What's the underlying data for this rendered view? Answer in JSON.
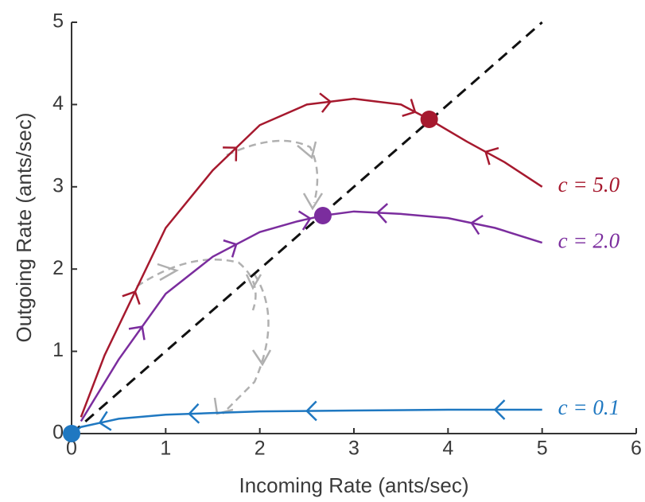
{
  "chart_data": {
    "type": "line",
    "xlabel": "Incoming Rate (ants/sec)",
    "ylabel": "Outgoing Rate (ants/sec)",
    "xlim": [
      0,
      6
    ],
    "ylim": [
      0,
      5
    ],
    "xticks": [
      0,
      1,
      2,
      3,
      4,
      5,
      6
    ],
    "yticks": [
      0,
      1,
      2,
      3,
      4,
      5
    ],
    "diagonal": {
      "x": [
        0,
        5
      ],
      "values": [
        0,
        5
      ],
      "color": "#111111"
    },
    "series": [
      {
        "name": "c = 5.0",
        "color": "#a6192e",
        "x": [
          0.1,
          0.35,
          1,
          1.5,
          2,
          2.5,
          3,
          3.5,
          3.8,
          4.2,
          4.6,
          5
        ],
        "values": [
          0.2,
          0.95,
          2.5,
          3.2,
          3.75,
          4.0,
          4.07,
          4.0,
          3.82,
          3.55,
          3.3,
          3.0
        ],
        "fixed_point": {
          "x": 3.8,
          "y": 3.82
        }
      },
      {
        "name": "c = 2.0",
        "color": "#7b2d9e",
        "x": [
          0.1,
          0.5,
          1,
          1.5,
          2,
          2.4,
          2.67,
          3,
          3.5,
          4,
          4.5,
          5
        ],
        "values": [
          0.15,
          0.9,
          1.7,
          2.15,
          2.45,
          2.58,
          2.65,
          2.7,
          2.67,
          2.62,
          2.5,
          2.32
        ],
        "fixed_point": {
          "x": 2.67,
          "y": 2.65
        }
      },
      {
        "name": "c = 0.1",
        "color": "#1f78c1",
        "x": [
          0,
          0.1,
          0.5,
          1,
          1.5,
          2,
          3,
          4,
          5
        ],
        "values": [
          0,
          0.08,
          0.18,
          0.23,
          0.25,
          0.27,
          0.28,
          0.29,
          0.29
        ],
        "fixed_point": {
          "x": 0,
          "y": 0
        }
      }
    ]
  }
}
